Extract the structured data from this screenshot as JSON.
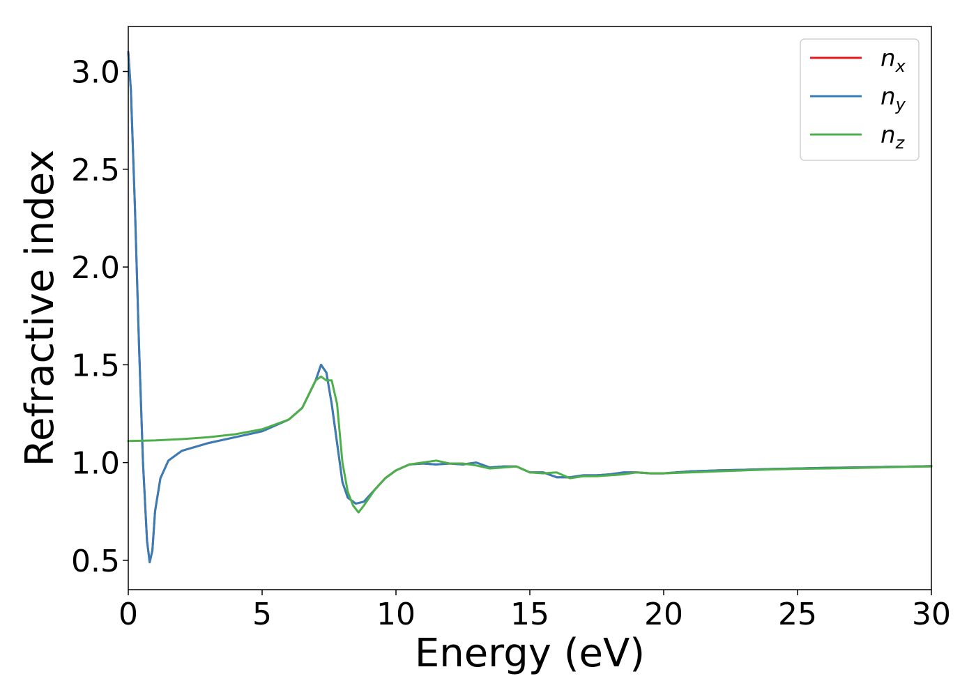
{
  "chart_data": {
    "type": "line",
    "xlabel": "Energy (eV)",
    "ylabel": "Refractive index",
    "xlim": [
      0,
      30
    ],
    "ylim": [
      0.35,
      3.23
    ],
    "x_ticks": [
      0,
      5,
      10,
      15,
      20,
      25,
      30
    ],
    "x_tick_labels": [
      "0",
      "5",
      "10",
      "15",
      "20",
      "25",
      "30"
    ],
    "y_ticks": [
      0.5,
      1.0,
      1.5,
      2.0,
      2.5,
      3.0
    ],
    "y_tick_labels": [
      "0.5",
      "1.0",
      "1.5",
      "2.0",
      "2.5",
      "3.0"
    ],
    "grid": false,
    "legend_position": "top-right",
    "series": [
      {
        "name": "n_x",
        "label_base": "n",
        "label_sub": "x",
        "color": "#e41a1c",
        "x": [
          0,
          0.1,
          0.25,
          0.4,
          0.55,
          0.7,
          0.8,
          0.9,
          1.0,
          1.2,
          1.5,
          2.0,
          3.0,
          4.0,
          5.0,
          6.0,
          6.5,
          7.0,
          7.2,
          7.4,
          7.6,
          7.8,
          8.0,
          8.2,
          8.5,
          8.8,
          9.2,
          9.6,
          10.0,
          10.5,
          11.0,
          11.5,
          12.0,
          12.5,
          13.0,
          13.5,
          14.0,
          14.5,
          15.0,
          15.5,
          16.0,
          16.5,
          17.0,
          17.5,
          18.0,
          18.5,
          19.0,
          19.5,
          20.0,
          21.0,
          22.0,
          23.0,
          24.0,
          25.0,
          26.0,
          27.0,
          28.0,
          29.0,
          30.0
        ],
        "values": [
          3.1,
          2.9,
          2.3,
          1.6,
          1.0,
          0.6,
          0.49,
          0.55,
          0.75,
          0.92,
          1.01,
          1.06,
          1.1,
          1.13,
          1.16,
          1.22,
          1.28,
          1.42,
          1.5,
          1.46,
          1.3,
          1.1,
          0.9,
          0.82,
          0.79,
          0.8,
          0.86,
          0.92,
          0.96,
          0.99,
          0.995,
          0.99,
          0.995,
          0.99,
          1.0,
          0.975,
          0.98,
          0.98,
          0.95,
          0.95,
          0.925,
          0.925,
          0.935,
          0.935,
          0.94,
          0.95,
          0.95,
          0.945,
          0.945,
          0.955,
          0.96,
          0.963,
          0.967,
          0.97,
          0.973,
          0.975,
          0.977,
          0.979,
          0.982
        ]
      },
      {
        "name": "n_y",
        "label_base": "n",
        "label_sub": "y",
        "color": "#377eb8",
        "x": [
          0,
          0.1,
          0.25,
          0.4,
          0.55,
          0.7,
          0.8,
          0.9,
          1.0,
          1.2,
          1.5,
          2.0,
          3.0,
          4.0,
          5.0,
          6.0,
          6.5,
          7.0,
          7.2,
          7.4,
          7.6,
          7.8,
          8.0,
          8.2,
          8.5,
          8.8,
          9.2,
          9.6,
          10.0,
          10.5,
          11.0,
          11.5,
          12.0,
          12.5,
          13.0,
          13.5,
          14.0,
          14.5,
          15.0,
          15.5,
          16.0,
          16.5,
          17.0,
          17.5,
          18.0,
          18.5,
          19.0,
          19.5,
          20.0,
          21.0,
          22.0,
          23.0,
          24.0,
          25.0,
          26.0,
          27.0,
          28.0,
          29.0,
          30.0
        ],
        "values": [
          3.1,
          2.9,
          2.3,
          1.6,
          1.0,
          0.6,
          0.49,
          0.55,
          0.75,
          0.92,
          1.01,
          1.06,
          1.1,
          1.13,
          1.16,
          1.22,
          1.28,
          1.42,
          1.5,
          1.46,
          1.3,
          1.1,
          0.9,
          0.82,
          0.79,
          0.8,
          0.86,
          0.92,
          0.96,
          0.99,
          0.995,
          0.99,
          0.995,
          0.99,
          1.0,
          0.975,
          0.98,
          0.98,
          0.95,
          0.95,
          0.925,
          0.925,
          0.935,
          0.935,
          0.94,
          0.95,
          0.95,
          0.945,
          0.945,
          0.955,
          0.96,
          0.963,
          0.967,
          0.97,
          0.973,
          0.975,
          0.977,
          0.979,
          0.982
        ]
      },
      {
        "name": "n_z",
        "label_base": "n",
        "label_sub": "z",
        "color": "#4daf4a",
        "x": [
          0,
          1,
          2,
          3,
          4,
          5,
          6,
          6.5,
          7.0,
          7.2,
          7.4,
          7.6,
          7.8,
          8.0,
          8.2,
          8.4,
          8.6,
          8.8,
          9.2,
          9.6,
          10.0,
          10.5,
          11.0,
          11.5,
          12.0,
          12.5,
          13.0,
          13.5,
          14.0,
          14.5,
          15.0,
          15.5,
          16.0,
          16.5,
          17.0,
          17.5,
          18.0,
          18.5,
          19.0,
          19.5,
          20.0,
          21.0,
          22.0,
          23.0,
          24.0,
          25.0,
          26.0,
          27.0,
          28.0,
          29.0,
          30.0
        ],
        "values": [
          1.11,
          1.113,
          1.12,
          1.13,
          1.145,
          1.17,
          1.22,
          1.28,
          1.42,
          1.44,
          1.42,
          1.42,
          1.3,
          1.0,
          0.85,
          0.78,
          0.745,
          0.78,
          0.86,
          0.92,
          0.96,
          0.99,
          1.0,
          1.01,
          0.995,
          0.995,
          0.985,
          0.97,
          0.975,
          0.98,
          0.95,
          0.945,
          0.95,
          0.92,
          0.93,
          0.93,
          0.935,
          0.94,
          0.95,
          0.945,
          0.945,
          0.95,
          0.955,
          0.96,
          0.965,
          0.968,
          0.97,
          0.972,
          0.975,
          0.978,
          0.98
        ]
      }
    ]
  }
}
